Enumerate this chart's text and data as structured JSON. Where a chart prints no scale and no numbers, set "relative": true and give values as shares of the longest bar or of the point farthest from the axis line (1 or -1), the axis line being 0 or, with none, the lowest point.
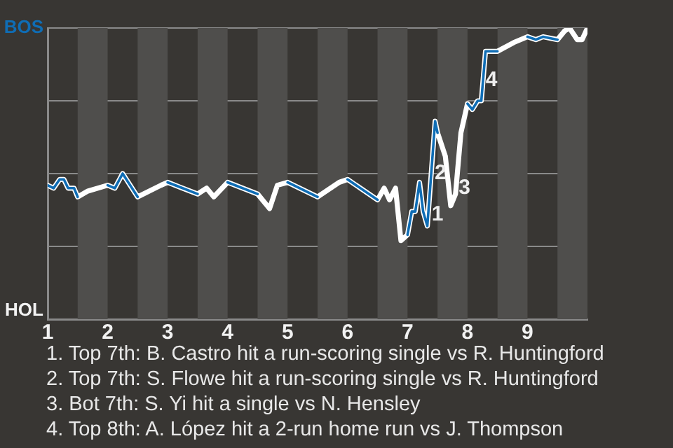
{
  "chart_data": {
    "type": "line",
    "relative": true,
    "x": [
      1,
      1.1,
      1.2,
      1.27,
      1.34,
      1.44,
      1.5,
      1.67,
      2,
      2.12,
      2.25,
      2.5,
      2.89,
      3,
      3.5,
      3.65,
      3.77,
      4,
      4.5,
      4.7,
      4.83,
      5,
      5.5,
      5.86,
      6,
      6.5,
      6.61,
      6.7,
      6.8,
      6.89,
      7,
      7.07,
      7.13,
      7.2,
      7.26,
      7.33,
      7.46,
      7.5,
      7.63,
      7.72,
      7.8,
      7.89,
      8,
      8.08,
      8.17,
      8.23,
      8.3,
      8.43,
      8.5,
      8.77,
      9,
      9.14,
      9.26,
      9.5,
      9.62,
      9.7,
      9.83,
      9.91,
      10
    ],
    "series": [
      {
        "color": "#ffffff",
        "values": [
          0.46,
          0.45,
          0.48,
          0.48,
          0.45,
          0.45,
          0.42,
          0.44,
          0.46,
          0.45,
          0.5,
          0.42,
          0.46,
          0.47,
          0.43,
          0.45,
          0.42,
          0.47,
          0.43,
          0.38,
          0.46,
          0.47,
          0.42,
          0.47,
          0.48,
          0.41,
          0.45,
          0.41,
          0.45,
          0.27,
          0.29,
          0.37,
          0.37,
          0.47,
          0.37,
          0.32,
          0.68,
          0.64,
          0.56,
          0.39,
          0.43,
          0.64,
          0.74,
          0.72,
          0.75,
          0.75,
          0.92,
          0.92,
          0.92,
          0.95,
          0.97,
          0.96,
          0.97,
          0.96,
          0.99,
          1,
          0.96,
          0.96,
          1
        ]
      },
      {
        "color": "#0f6db5",
        "values": [
          0.46,
          0.45,
          0.48,
          0.48,
          0.45,
          0.45,
          0.42,
          null,
          0.46,
          0.45,
          0.5,
          0.42,
          null,
          0.47,
          0.43,
          null,
          null,
          0.47,
          0.43,
          null,
          null,
          0.47,
          0.42,
          null,
          0.48,
          0.41,
          null,
          null,
          null,
          null,
          0.29,
          0.37,
          0.37,
          0.47,
          0.37,
          0.32,
          0.68,
          0.64,
          null,
          null,
          null,
          null,
          0.74,
          0.72,
          0.75,
          0.75,
          0.92,
          0.92,
          0.92,
          null,
          0.97,
          0.96,
          0.97,
          0.96,
          null,
          null,
          null,
          null,
          null
        ]
      }
    ],
    "xlim": [
      1,
      10
    ],
    "xticks": [
      1,
      2,
      3,
      4,
      5,
      6,
      7,
      8,
      9
    ],
    "grid": "y",
    "marker": "none",
    "legend": false,
    "bands": [
      {
        "axis": "x",
        "from": 1.5,
        "to": 2,
        "color": "#4f4e4c"
      },
      {
        "axis": "x",
        "from": 2.5,
        "to": 3,
        "color": "#4f4e4c"
      },
      {
        "axis": "x",
        "from": 3.5,
        "to": 4,
        "color": "#4f4e4c"
      },
      {
        "axis": "x",
        "from": 4.5,
        "to": 5,
        "color": "#4f4e4c"
      },
      {
        "axis": "x",
        "from": 5.5,
        "to": 6,
        "color": "#4f4e4c"
      },
      {
        "axis": "x",
        "from": 6.5,
        "to": 7,
        "color": "#4f4e4c"
      },
      {
        "axis": "x",
        "from": 7.5,
        "to": 8,
        "color": "#4f4e4c"
      },
      {
        "axis": "x",
        "from": 8.5,
        "to": 9,
        "color": "#4f4e4c"
      },
      {
        "axis": "x",
        "from": 9.5,
        "to": 10,
        "color": "#4f4e4c"
      }
    ],
    "annotations": [
      "BOS",
      "HOL",
      {
        "text": "1",
        "x": 7.5,
        "y": 0.36
      },
      {
        "text": "2",
        "x": 7.55,
        "y": 0.5
      },
      {
        "text": "3",
        "x": 7.95,
        "y": 0.45
      },
      {
        "text": "4",
        "x": 8.4,
        "y": 0.82
      },
      "1. Top 7th: B. Castro hit a run-scoring single vs R. Huntingford",
      "2. Top 7th: S. Flowe hit a run-scoring single vs R. Huntingford",
      "3. Bot 7th: S. Yi hit a single vs N. Hensley",
      "4. Top 8th: A. López hit a 2-run home run vs J. Thompson"
    ]
  }
}
